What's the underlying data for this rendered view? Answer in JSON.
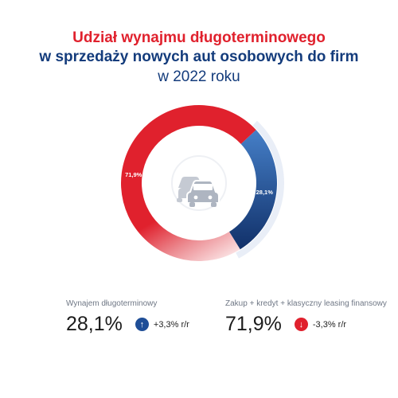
{
  "title": {
    "line1": "Udział wynajmu długoterminowego",
    "line2": "w sprzedaży nowych aut osobowych do firm",
    "line3": "w 2022 roku"
  },
  "chart_data": {
    "type": "pie",
    "categories": [
      "Wynajem długoterminowy",
      "Zakup + kredyt + klasyczny leasing finansowy"
    ],
    "values": [
      28.1,
      71.9
    ],
    "data_labels": [
      "28,1%",
      "71,9%"
    ],
    "colors": [
      "#1f4e97",
      "#e0212d"
    ]
  },
  "center_icon": "cars-icon",
  "stats": [
    {
      "label": "Wynajem długoterminowy",
      "value": "28,1%",
      "change": "+3,3% r/r",
      "direction": "up",
      "icon": "arrow-up-icon"
    },
    {
      "label": "Zakup + kredyt + klasyczny leasing finansowy",
      "value": "71,9%",
      "change": "-3,3% r/r",
      "direction": "down",
      "icon": "arrow-down-icon"
    }
  ]
}
